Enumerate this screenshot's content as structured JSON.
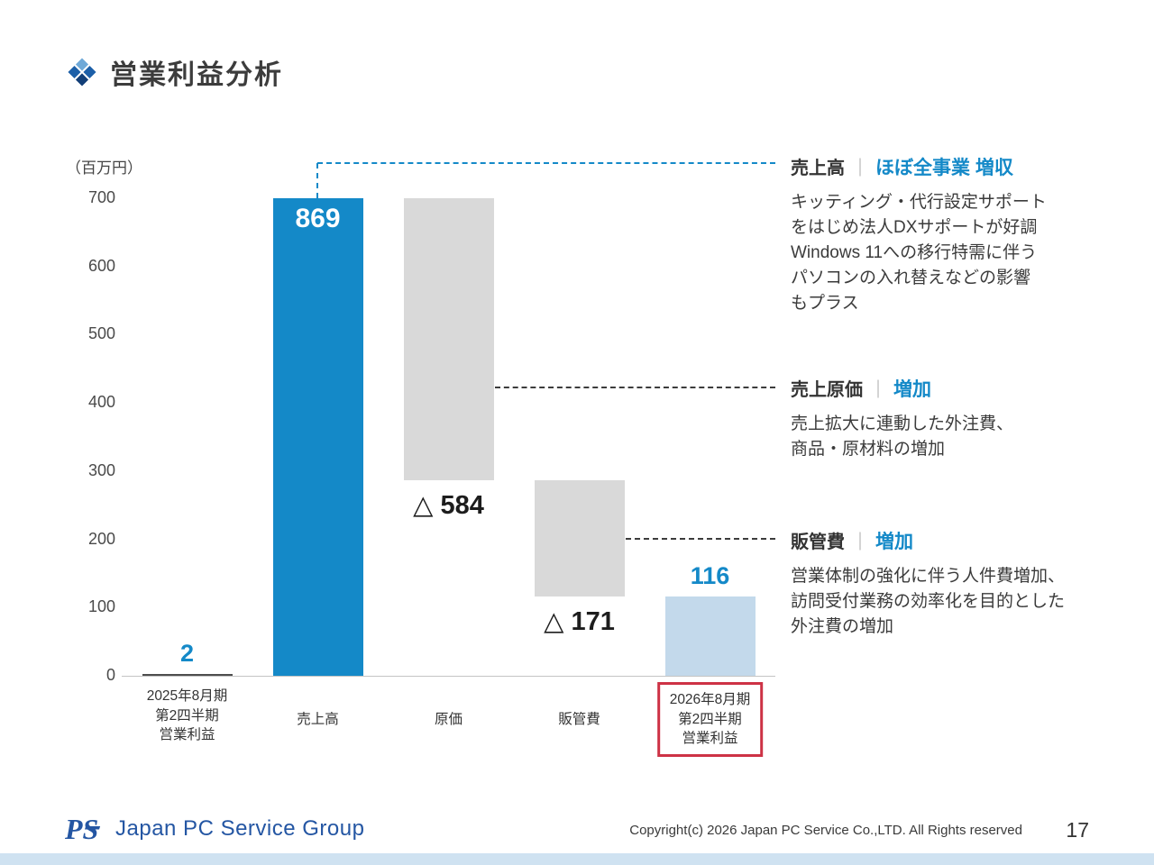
{
  "chart_data": {
    "type": "bar",
    "subtype": "waterfall",
    "title": "営業利益分析",
    "unit_label": "（百万円）",
    "ylim": [
      0,
      700
    ],
    "yticks": [
      700,
      600,
      500,
      400,
      300,
      200,
      100,
      0
    ],
    "categories": [
      "2025年8月期 第2四半期 営業利益",
      "売上高",
      "原価",
      "販管費",
      "2026年8月期 第2四半期 営業利益"
    ],
    "bars": [
      {
        "category_lines": [
          "2025年8月期",
          "第2四半期",
          "営業利益"
        ],
        "value": 2,
        "segment": [
          0,
          2
        ],
        "display_label": "2",
        "label_position": "above",
        "color_key": "bar_dark",
        "label_color_key": "accent_blue",
        "highlight_category": false
      },
      {
        "category_lines": [
          "売上高"
        ],
        "value": 869,
        "segment": [
          0,
          700
        ],
        "clipped_at_axis_max": true,
        "display_label": "869",
        "label_position": "inside-top",
        "color_key": "bar_blue",
        "label_color_key": "white",
        "highlight_category": false
      },
      {
        "category_lines": [
          "原価"
        ],
        "value": -584,
        "segment": [
          287,
          700
        ],
        "display_label": "△ 584",
        "label_position": "below",
        "color_key": "bar_gray",
        "label_color_key": "value_dark",
        "highlight_category": false
      },
      {
        "category_lines": [
          "販管費"
        ],
        "value": -171,
        "segment": [
          116,
          287
        ],
        "display_label": "△ 171",
        "label_position": "below",
        "color_key": "bar_gray",
        "label_color_key": "value_dark",
        "highlight_category": false
      },
      {
        "category_lines": [
          "2026年8月期",
          "第2四半期",
          "営業利益"
        ],
        "value": 116,
        "segment": [
          0,
          116
        ],
        "display_label": "116",
        "label_position": "above",
        "color_key": "bar_lightblue",
        "label_color_key": "accent_blue",
        "highlight_category": true
      }
    ],
    "legend": "none",
    "grid": "off"
  },
  "colors": {
    "bar_blue": "#1489c8",
    "bar_lightblue": "#c3d9eb",
    "bar_gray": "#d9d9d9",
    "bar_dark": "#4d4d4d",
    "accent_blue": "#1489c8",
    "white": "#ffffff",
    "value_dark": "#1d1d1d",
    "highlight_red": "#cd3245",
    "footer_strip": "#cfe2f1",
    "logo_blue": "#2456a3"
  },
  "annotations": [
    {
      "title": "売上高",
      "separator": "｜",
      "tag": "ほぼ全事業 増収",
      "body_lines": [
        "キッティング・代行設定サポート",
        "をはじめ法人DXサポートが好調",
        "Windows 11への移行特需に伴う",
        "パソコンの入れ替えなどの影響",
        "もプラス"
      ]
    },
    {
      "title": "売上原価",
      "separator": "｜",
      "tag": "増加",
      "body_lines": [
        "売上拡大に連動した外注費、",
        "商品・原材料の増加"
      ]
    },
    {
      "title": "販管費",
      "separator": "｜",
      "tag": "増加",
      "body_lines": [
        "営業体制の強化に伴う人件費増加、",
        "訪問受付業務の効率化を目的とした",
        "外注費の増加"
      ]
    }
  ],
  "footer": {
    "logo_mark": "PS",
    "logo_text": "Japan PC Service Group",
    "copyright": "Copyright(c) 2026 Japan PC Service Co.,LTD. All Rights reserved",
    "page_number": "17"
  }
}
